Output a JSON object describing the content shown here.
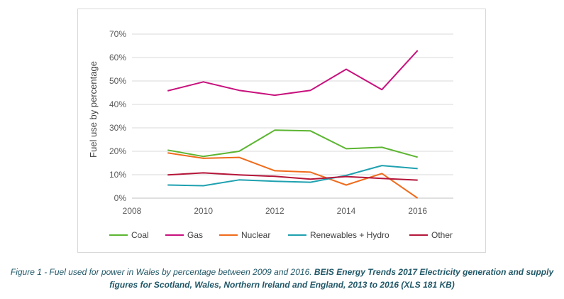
{
  "chart_data": {
    "type": "line",
    "title": "",
    "xlabel": "",
    "ylabel": "Fuel use by percentage",
    "xlim": [
      2008,
      2017
    ],
    "ylim": [
      0,
      70
    ],
    "x_ticks": [
      2008,
      2010,
      2012,
      2014,
      2016
    ],
    "x_tick_labels": [
      "2008",
      "2010",
      "2012",
      "2014",
      "2016"
    ],
    "y_ticks": [
      0,
      10,
      20,
      30,
      40,
      50,
      60,
      70
    ],
    "y_tick_labels": [
      "0%",
      "10%",
      "20%",
      "30%",
      "40%",
      "50%",
      "60%",
      "70%"
    ],
    "grid": "horizontal",
    "legend_position": "bottom",
    "x": [
      2009,
      2010,
      2011,
      2012,
      2013,
      2014,
      2015,
      2016
    ],
    "series": [
      {
        "name": "Coal",
        "color": "#5cb531",
        "values": [
          20.5,
          17.8,
          20,
          29,
          28.7,
          21.1,
          21.7,
          17.5
        ]
      },
      {
        "name": "Gas",
        "color": "#c8117d",
        "values": [
          45.8,
          49.6,
          46,
          43.9,
          46,
          55,
          46.3,
          63
        ]
      },
      {
        "name": "Nuclear",
        "color": "#f06b1b",
        "values": [
          19.3,
          17,
          17.4,
          11.7,
          11.1,
          5.6,
          10.5,
          0
        ]
      },
      {
        "name": "Renewables + Hydro",
        "color": "#1fa1b0",
        "values": [
          5.6,
          5.3,
          7.8,
          7.2,
          6.8,
          9.7,
          13.9,
          12.6
        ]
      },
      {
        "name": "Other",
        "color": "#b5163a",
        "values": [
          9.9,
          10.8,
          9.9,
          9.3,
          8.1,
          9.2,
          8.4,
          7.7
        ]
      }
    ]
  },
  "caption": {
    "part1": "Figure 1 - Fuel used for power in Wales by percentage between 2009 and 2016. ",
    "part2": "BEIS Energy Trends 2017 Electricity generation and supply figures for Scotland, Wales, Northern Ireland and England, 2013 to 2016 (XLS 181 KB)"
  }
}
